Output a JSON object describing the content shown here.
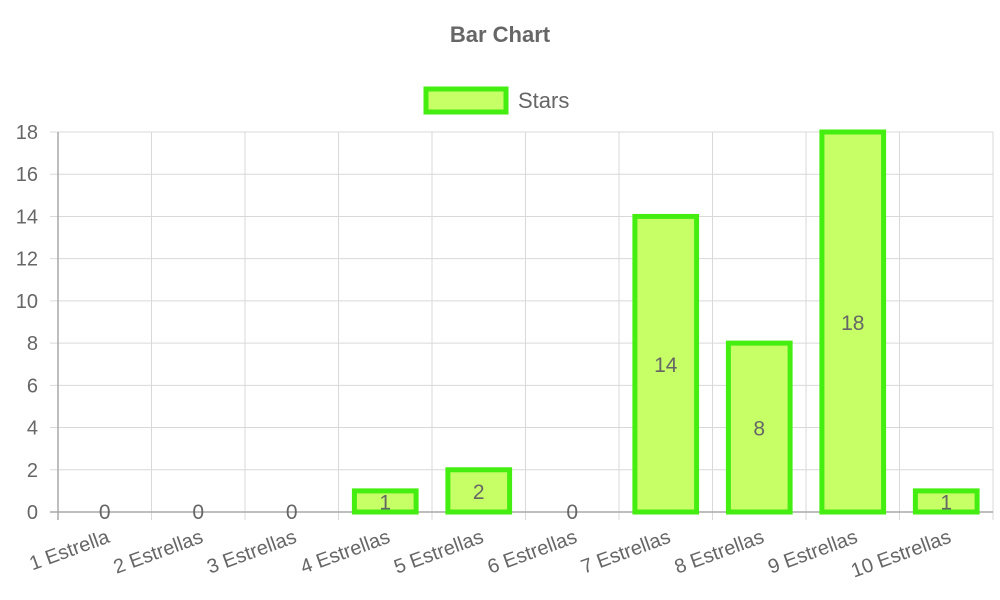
{
  "chart_data": {
    "type": "bar",
    "title": "Bar Chart",
    "categories": [
      "1 Estrella",
      "2 Estrellas",
      "3 Estrellas",
      "4 Estrellas",
      "5 Estrellas",
      "6 Estrellas",
      "7 Estrellas",
      "8 Estrellas",
      "9 Estrellas",
      "10 Estrellas"
    ],
    "series": [
      {
        "name": "Stars",
        "values": [
          0,
          0,
          0,
          1,
          2,
          0,
          14,
          8,
          18,
          1
        ]
      }
    ],
    "ylim": [
      0,
      18
    ],
    "yticks": [
      0,
      2,
      4,
      6,
      8,
      10,
      12,
      14,
      16,
      18
    ],
    "grid": true,
    "legend_position": "top",
    "data_labels": true,
    "colors": {
      "bar_fill": "#c6ff66",
      "bar_border": "#44ee11",
      "text": "#666666",
      "grid": "#d9d9d9"
    }
  }
}
